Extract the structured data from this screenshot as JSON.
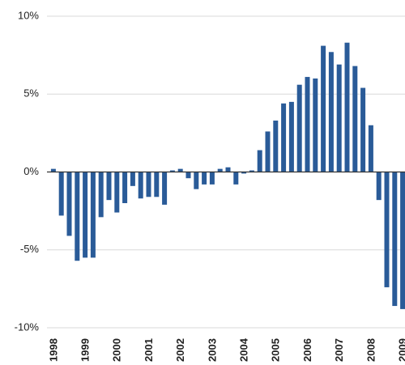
{
  "chart_data": {
    "type": "bar",
    "categories": [
      "1998",
      null,
      null,
      null,
      "1999",
      null,
      null,
      null,
      "2000",
      null,
      null,
      null,
      "2001",
      null,
      null,
      null,
      "2002",
      null,
      null,
      null,
      "2003",
      null,
      null,
      null,
      "2004",
      null,
      null,
      null,
      "2005",
      null,
      null,
      null,
      "2006",
      null,
      null,
      null,
      "2007",
      null,
      null,
      null,
      "2008",
      null,
      null,
      null,
      "2009"
    ],
    "values": [
      0.2,
      -2.8,
      -4.1,
      -5.7,
      -5.5,
      -5.5,
      -2.9,
      -1.8,
      -2.6,
      -2.0,
      -0.9,
      -1.7,
      -1.6,
      -1.6,
      -2.1,
      0.1,
      0.2,
      -0.4,
      -1.1,
      -0.8,
      -0.8,
      0.2,
      0.3,
      -0.8,
      -0.1,
      0.1,
      1.4,
      2.6,
      3.3,
      4.4,
      4.5,
      5.6,
      6.1,
      6.0,
      8.1,
      7.7,
      6.9,
      8.3,
      6.8,
      5.4,
      3.0,
      -1.8,
      -7.4,
      -8.6,
      -8.8
    ],
    "color": "#2a5b98",
    "ylim": [
      -10,
      10
    ],
    "yticks": [
      {
        "value": -10,
        "label": "-10%"
      },
      {
        "value": -5,
        "label": "-5%"
      },
      {
        "value": 0,
        "label": "0%"
      },
      {
        "value": 5,
        "label": "5%"
      },
      {
        "value": 10,
        "label": "10%"
      }
    ],
    "grid": true
  }
}
